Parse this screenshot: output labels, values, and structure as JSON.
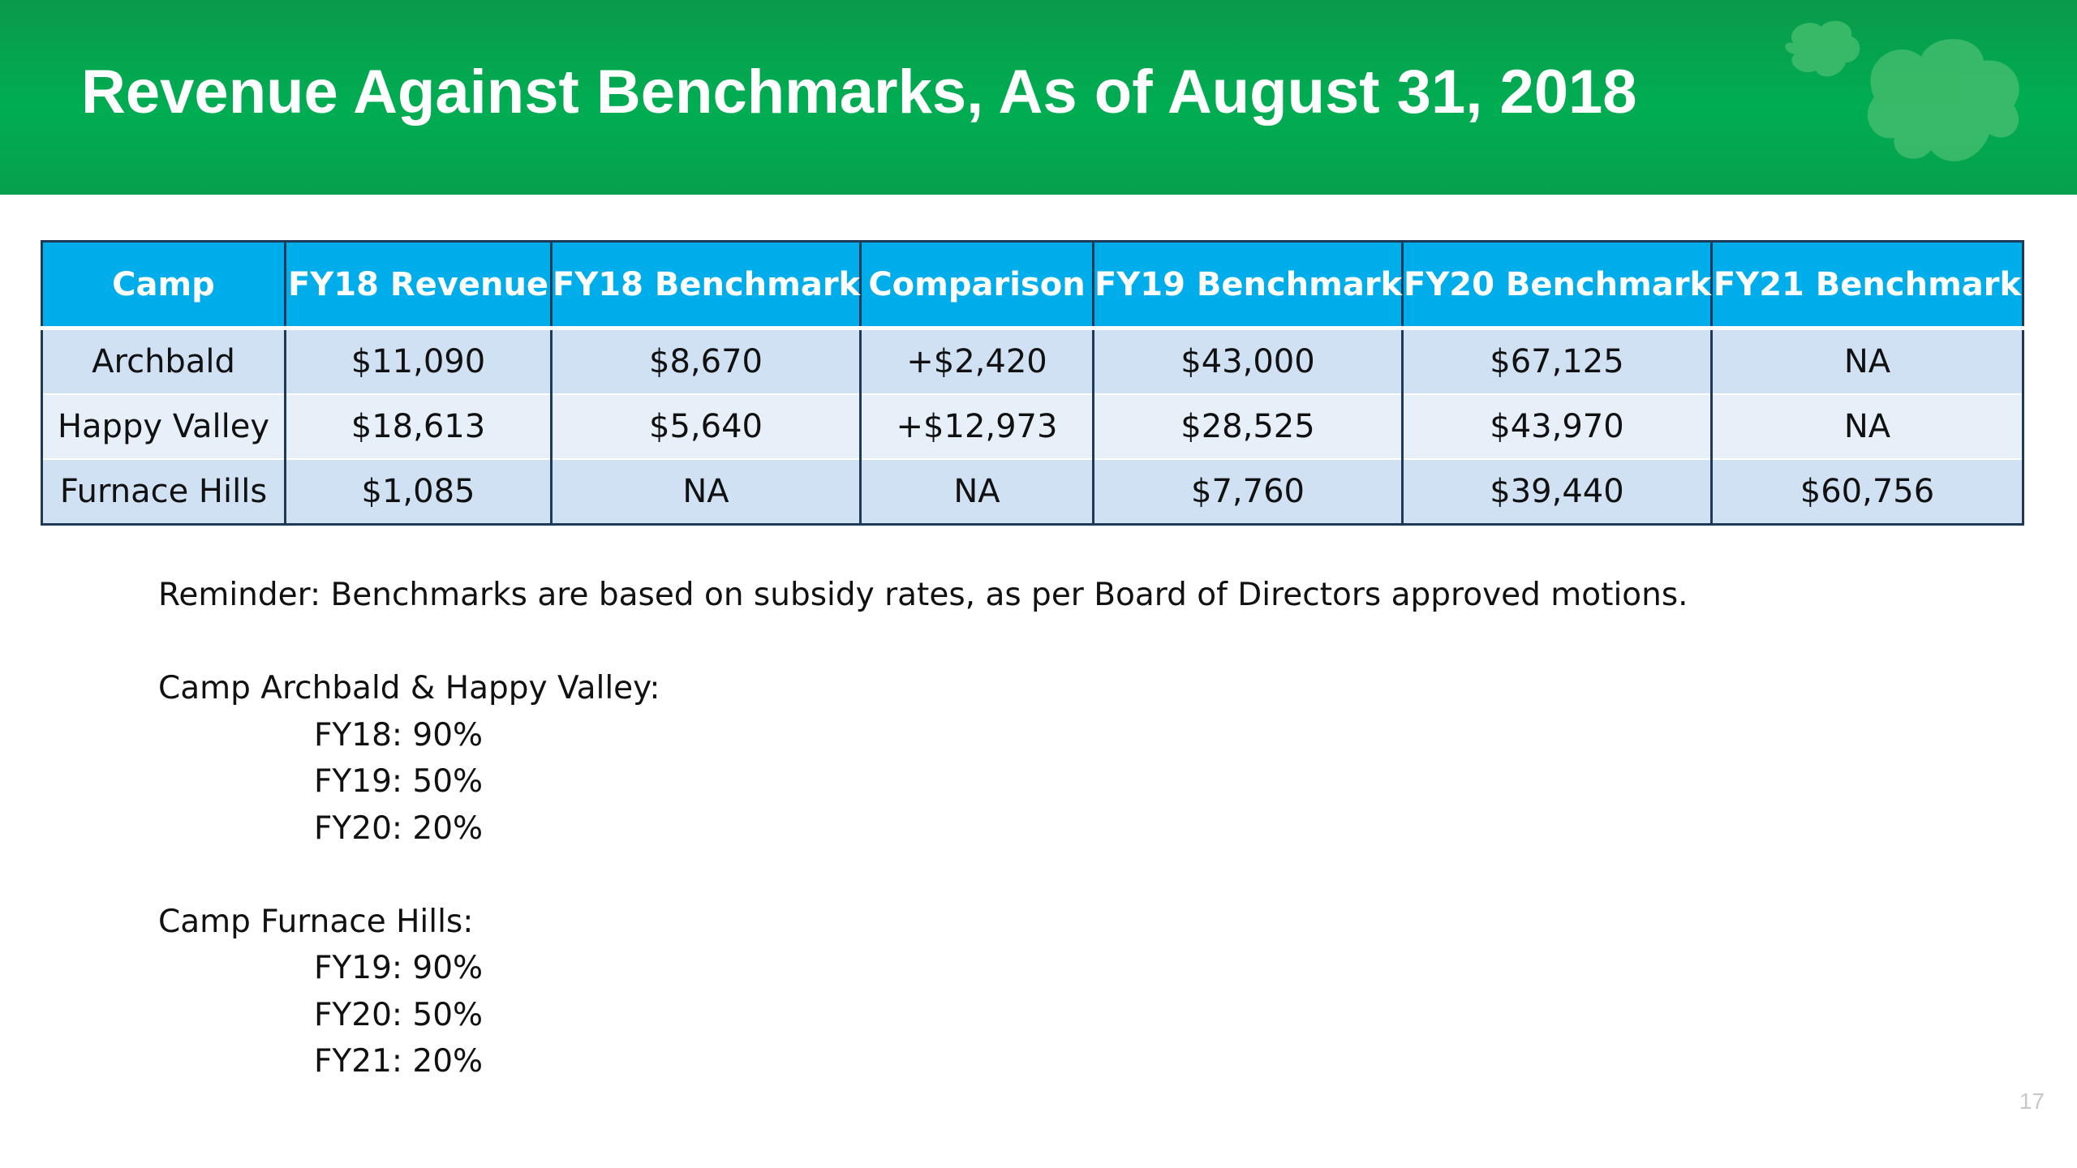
{
  "slide": {
    "title": "Revenue Against Benchmarks, As of August 31, 2018",
    "page_number": "17",
    "brand_color": "#00ad52",
    "logo_icon": "trefoil-logo-icon"
  },
  "table": {
    "headers": [
      "Camp",
      "FY18 Revenue",
      "FY18 Benchmark",
      "Comparison",
      "FY19 Benchmark",
      "FY20 Benchmark",
      "FY21 Benchmark"
    ],
    "rows": [
      [
        "Archbald",
        "$11,090",
        "$8,670",
        "+$2,420",
        "$43,000",
        "$67,125",
        "NA"
      ],
      [
        "Happy Valley",
        "$18,613",
        "$5,640",
        "+$12,973",
        "$28,525",
        "$43,970",
        "NA"
      ],
      [
        "Furnace Hills",
        "$1,085",
        "NA",
        "NA",
        "$7,760",
        "$39,440",
        "$60,756"
      ]
    ],
    "header_color": "#00adeb",
    "row_colors": [
      "#cfe1f3",
      "#e7f0f9"
    ]
  },
  "notes": {
    "reminder": "Reminder: Benchmarks are based on subsidy rates, as per Board of Directors approved motions.",
    "groups": [
      {
        "heading": "Camp Archbald & Happy Valley:",
        "rates": [
          "FY18: 90%",
          "FY19: 50%",
          "FY20: 20%"
        ]
      },
      {
        "heading": "Camp Furnace Hills:",
        "rates": [
          "FY19: 90%",
          "FY20: 50%",
          "FY21: 20%"
        ]
      }
    ]
  }
}
